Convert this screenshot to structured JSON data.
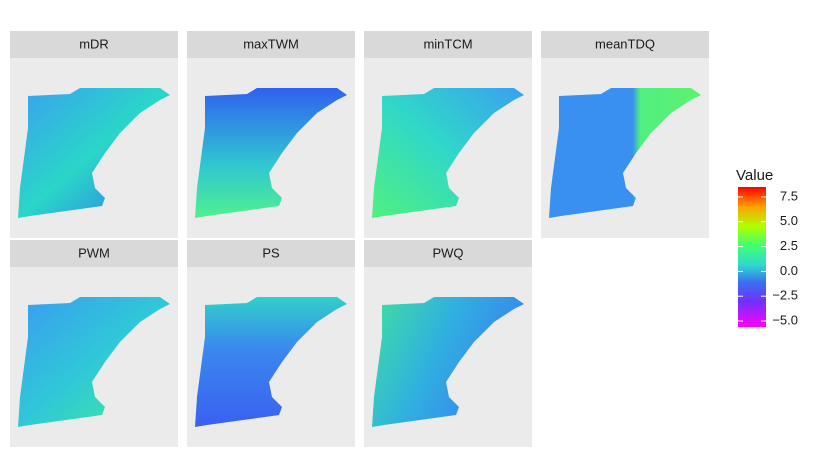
{
  "chart_data": {
    "type": "raster-map",
    "panels": [
      "mDR",
      "maxTWM",
      "minTCM",
      "meanTDQ",
      "PWM",
      "PS",
      "PWQ"
    ],
    "legend_title": "Value",
    "colorbar": {
      "lim": [
        -5.6,
        8.5
      ],
      "ticks": [
        {
          "value": -5,
          "label": "−5.0"
        },
        {
          "value": -2.5,
          "label": "−2.5"
        },
        {
          "value": 0,
          "label": "0.0"
        },
        2.5,
        {
          "value": 5,
          "label": "5.0"
        },
        7.5
      ]
    }
  }
}
